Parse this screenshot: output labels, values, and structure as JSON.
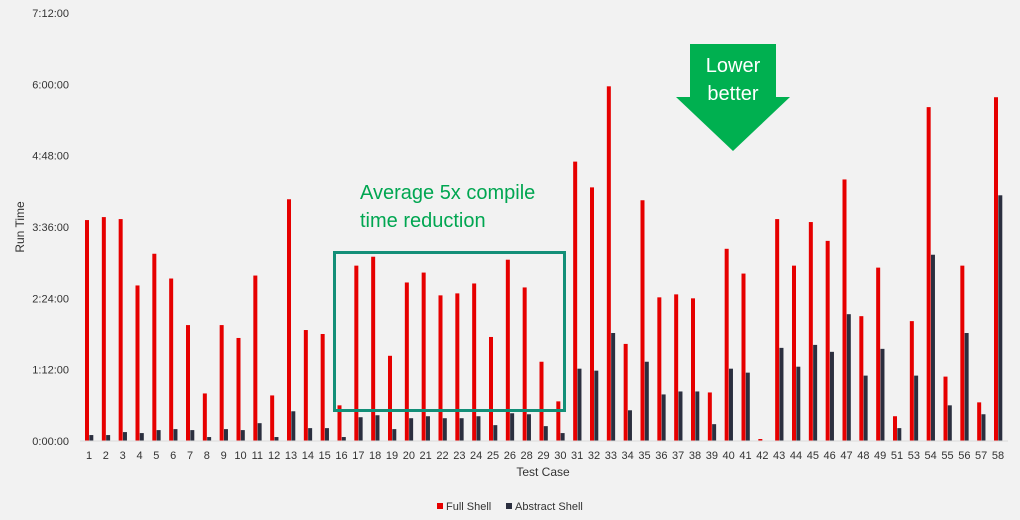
{
  "chart_data": {
    "type": "bar",
    "title": "",
    "xlabel": "Test Case",
    "ylabel": "Run Time",
    "y_unit": "minutes",
    "ylim": [
      0,
      432
    ],
    "yticks": [
      0,
      72,
      144,
      216,
      288,
      360,
      432
    ],
    "ytick_labels": [
      "0:00:00",
      "1:12:00",
      "2:24:00",
      "3:36:00",
      "4:48:00",
      "6:00:00",
      "7:12:00"
    ],
    "grid": false,
    "legend_position": "bottom",
    "categories": [
      "1",
      "2",
      "3",
      "4",
      "5",
      "6",
      "7",
      "8",
      "9",
      "10",
      "11",
      "12",
      "13",
      "14",
      "15",
      "16",
      "17",
      "18",
      "19",
      "20",
      "21",
      "22",
      "23",
      "24",
      "25",
      "26",
      "28",
      "29",
      "30",
      "31",
      "32",
      "33",
      "34",
      "35",
      "36",
      "37",
      "38",
      "39",
      "40",
      "41",
      "42",
      "43",
      "44",
      "45",
      "46",
      "47",
      "48",
      "49",
      "51",
      "53",
      "54",
      "55",
      "56",
      "57",
      "58"
    ],
    "series": [
      {
        "name": "Full Shell",
        "color": "#e60000",
        "values": [
          223,
          226,
          224,
          157,
          189,
          164,
          117,
          48,
          117,
          104,
          167,
          46,
          244,
          112,
          108,
          36,
          177,
          186,
          86,
          160,
          170,
          147,
          149,
          159,
          105,
          183,
          155,
          80,
          40,
          282,
          256,
          358,
          98,
          243,
          145,
          148,
          144,
          49,
          194,
          169,
          2,
          224,
          177,
          221,
          202,
          264,
          126,
          175,
          25,
          121,
          337,
          65,
          177,
          39,
          347
        ]
      },
      {
        "name": "Abstract Shell",
        "color": "#2b2f3f",
        "values": [
          6,
          6,
          9,
          8,
          11,
          12,
          11,
          4,
          12,
          11,
          18,
          4,
          30,
          13,
          13,
          4,
          24,
          26,
          12,
          23,
          25,
          23,
          23,
          25,
          16,
          28,
          27,
          15,
          8,
          73,
          71,
          109,
          31,
          80,
          47,
          50,
          50,
          17,
          73,
          69,
          0.5,
          94,
          75,
          97,
          90,
          128,
          66,
          93,
          13,
          66,
          188,
          36,
          109,
          27,
          248
        ]
      }
    ],
    "annotations": {
      "box_note": "Average 5x compile time reduction",
      "box_note_line1": "Average 5x compile",
      "box_note_line2": "time reduction",
      "arrow_line1": "Lower",
      "arrow_line2": "better",
      "arrow_color": "#00b050",
      "box_color": "#138f78"
    }
  }
}
